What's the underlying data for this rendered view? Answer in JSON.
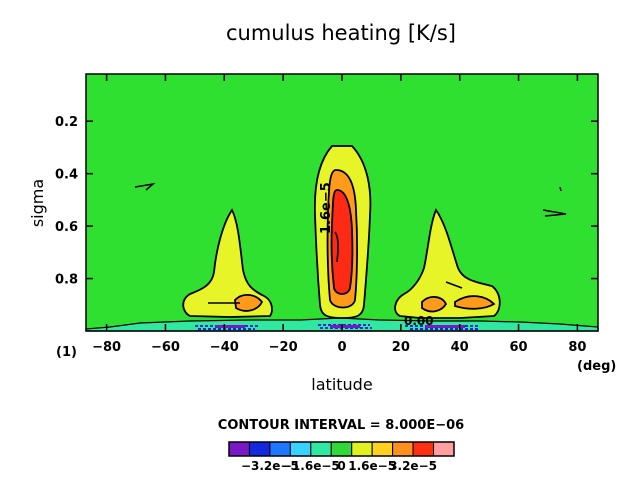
{
  "chart_data": {
    "type": "heatmap",
    "title": "cumulus heating [K/s]",
    "xlabel": "latitude",
    "ylabel": "sigma",
    "x_unit": "(deg)",
    "panel_label": "(1)",
    "xlim": [
      -87,
      87
    ],
    "ylim": [
      0.02,
      1.0
    ],
    "y_inverted": true,
    "x_ticks": [
      -80,
      -60,
      -40,
      -20,
      0,
      20,
      40,
      60,
      80
    ],
    "y_ticks": [
      0.2,
      0.4,
      0.6,
      0.8
    ],
    "x_tick_labels": [
      "−80",
      "−60",
      "−40",
      "−20",
      "0",
      "20",
      "40",
      "60",
      "80"
    ],
    "y_tick_labels": [
      "0.2",
      "0.4",
      "0.6",
      "0.8"
    ],
    "contour_interval_text": "CONTOUR INTERVAL = 8.000E−06",
    "contour_labels": [
      {
        "text": "1.6e−5",
        "x": -3,
        "y": 0.56
      },
      {
        "text": "0.00",
        "x": 29,
        "y": 0.96
      }
    ],
    "colorbar": {
      "colors": [
        "#7a18c8",
        "#1428e0",
        "#1e78ff",
        "#38d2ff",
        "#30e8a0",
        "#30d838",
        "#e0f020",
        "#ffd020",
        "#ff9020",
        "#ff3010",
        "#ffa0a0"
      ],
      "tick_labels": [
        "−3.2e−5",
        "−1.6e−5",
        "0",
        "1.6e−5",
        "3.2e−5"
      ]
    },
    "level_colors": {
      "background": "#30e030",
      "near_zero_negative": "#30e8a0",
      "level_1": "#e6f428",
      "level_2": "#ff9a1a",
      "level_3": "#ff2a14"
    },
    "features": [
      {
        "name": "equatorial-maximum",
        "lat": 0,
        "sigma_range": [
          0.29,
          0.95
        ],
        "peak_level": 3
      },
      {
        "name": "southern-branch",
        "lat": -37,
        "sigma_range": [
          0.53,
          0.95
        ],
        "peak_level": 2
      },
      {
        "name": "northern-branch",
        "lat": 36,
        "sigma_range": [
          0.52,
          0.95
        ],
        "peak_level": 2
      }
    ]
  }
}
